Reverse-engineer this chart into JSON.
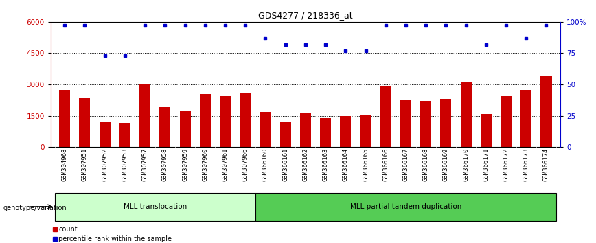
{
  "title": "GDS4277 / 218336_at",
  "samples": [
    "GSM304968",
    "GSM307951",
    "GSM307952",
    "GSM307953",
    "GSM307957",
    "GSM307958",
    "GSM307959",
    "GSM307960",
    "GSM307961",
    "GSM307966",
    "GSM366160",
    "GSM366161",
    "GSM366162",
    "GSM366163",
    "GSM366164",
    "GSM366165",
    "GSM366166",
    "GSM366167",
    "GSM366168",
    "GSM366169",
    "GSM366170",
    "GSM366171",
    "GSM366172",
    "GSM366173",
    "GSM366174"
  ],
  "counts": [
    2750,
    2350,
    1200,
    1150,
    3000,
    1900,
    1750,
    2550,
    2450,
    2600,
    1700,
    1200,
    1650,
    1400,
    1500,
    1550,
    2950,
    2250,
    2200,
    2300,
    3100,
    1600,
    2450,
    2750,
    3400
  ],
  "percentile_ranks": [
    97,
    97,
    73,
    73,
    97,
    97,
    97,
    97,
    97,
    97,
    87,
    82,
    82,
    82,
    77,
    77,
    97,
    97,
    97,
    97,
    97,
    82,
    97,
    87,
    97
  ],
  "bar_color": "#cc0000",
  "dot_color": "#0000cc",
  "group1_label": "MLL translocation",
  "group1_count": 10,
  "group2_label": "MLL partial tandem duplication",
  "group2_count": 15,
  "group1_color": "#ccffcc",
  "group2_color": "#55cc55",
  "group_label": "genotype/variation",
  "ylim_left": [
    0,
    6000
  ],
  "ylim_right": [
    0,
    100
  ],
  "yticks_left": [
    0,
    1500,
    3000,
    4500,
    6000
  ],
  "yticks_right": [
    0,
    25,
    50,
    75,
    100
  ],
  "legend_count_label": "count",
  "legend_pct_label": "percentile rank within the sample",
  "bg_color": "#ffffff",
  "tick_label_fontsize": 6.5,
  "title_fontsize": 9,
  "xticklabel_bg": "#d8d8d8"
}
